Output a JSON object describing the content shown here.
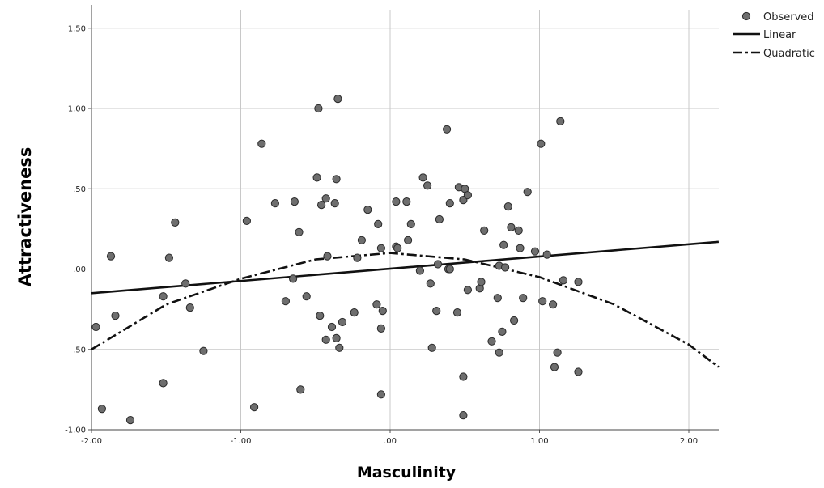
{
  "chart_data": {
    "type": "scatter",
    "xlabel": "Masculinity",
    "ylabel": "Attractiveness",
    "xlim": [
      -2.0,
      2.2
    ],
    "ylim": [
      -1.0,
      1.6
    ],
    "x_ticks": [
      -2.0,
      -1.0,
      0.0,
      1.0,
      2.0
    ],
    "x_tick_labels": [
      "-2.00",
      "-1.00",
      ".00",
      "1.00",
      "2.00"
    ],
    "y_ticks": [
      -1.0,
      -0.5,
      0.0,
      0.5,
      1.0,
      1.5
    ],
    "y_tick_labels": [
      "-1.00",
      "-.50",
      ".00",
      ".50",
      "1.00",
      "1.50"
    ],
    "grid": true,
    "legend_position": "top-right",
    "legend": [
      "Observed",
      "Linear",
      "Quadratic"
    ],
    "colors": {
      "points": "#6e6e6e",
      "lines": "#111111",
      "grid": "#c8c8c8"
    },
    "series": [
      {
        "name": "Observed",
        "type": "scatter",
        "points": [
          [
            -1.97,
            -0.36
          ],
          [
            -1.93,
            -0.87
          ],
          [
            -1.87,
            0.08
          ],
          [
            -1.84,
            -0.29
          ],
          [
            -1.74,
            -0.94
          ],
          [
            -1.52,
            -0.71
          ],
          [
            -1.52,
            -0.17
          ],
          [
            -1.48,
            0.07
          ],
          [
            -1.44,
            0.29
          ],
          [
            -1.37,
            -0.09
          ],
          [
            -1.34,
            -0.24
          ],
          [
            -1.25,
            -0.51
          ],
          [
            -0.96,
            0.3
          ],
          [
            -0.91,
            -0.86
          ],
          [
            -0.86,
            0.78
          ],
          [
            -0.77,
            0.41
          ],
          [
            -0.7,
            -0.2
          ],
          [
            -0.65,
            -0.06
          ],
          [
            -0.64,
            0.42
          ],
          [
            -0.6,
            -0.75
          ],
          [
            -0.61,
            0.23
          ],
          [
            -0.56,
            -0.17
          ],
          [
            -0.49,
            0.57
          ],
          [
            -0.48,
            1.0
          ],
          [
            -0.47,
            -0.29
          ],
          [
            -0.46,
            0.4
          ],
          [
            -0.43,
            0.44
          ],
          [
            -0.43,
            -0.44
          ],
          [
            -0.42,
            0.08
          ],
          [
            -0.39,
            -0.36
          ],
          [
            -0.37,
            0.41
          ],
          [
            -0.36,
            0.56
          ],
          [
            -0.36,
            -0.43
          ],
          [
            -0.35,
            1.06
          ],
          [
            -0.34,
            -0.49
          ],
          [
            -0.32,
            -0.33
          ],
          [
            -0.24,
            -0.27
          ],
          [
            -0.22,
            0.07
          ],
          [
            -0.19,
            0.18
          ],
          [
            -0.15,
            0.37
          ],
          [
            -0.09,
            -0.22
          ],
          [
            -0.08,
            0.28
          ],
          [
            -0.06,
            0.13
          ],
          [
            -0.06,
            -0.78
          ],
          [
            -0.06,
            -0.37
          ],
          [
            -0.05,
            -0.26
          ],
          [
            0.04,
            0.42
          ],
          [
            0.04,
            0.14
          ],
          [
            0.05,
            0.13
          ],
          [
            0.11,
            0.42
          ],
          [
            0.12,
            0.18
          ],
          [
            0.14,
            0.28
          ],
          [
            0.2,
            -0.01
          ],
          [
            0.22,
            0.57
          ],
          [
            0.25,
            0.52
          ],
          [
            0.27,
            -0.09
          ],
          [
            0.28,
            -0.49
          ],
          [
            0.31,
            -0.26
          ],
          [
            0.32,
            0.03
          ],
          [
            0.33,
            0.31
          ],
          [
            0.38,
            0.87
          ],
          [
            0.39,
            0.0
          ],
          [
            0.4,
            0.41
          ],
          [
            0.4,
            0.0
          ],
          [
            0.45,
            -0.27
          ],
          [
            0.46,
            0.51
          ],
          [
            0.49,
            0.43
          ],
          [
            0.49,
            -0.67
          ],
          [
            0.49,
            -0.91
          ],
          [
            0.5,
            0.5
          ],
          [
            0.52,
            -0.13
          ],
          [
            0.52,
            0.46
          ],
          [
            0.6,
            -0.12
          ],
          [
            0.61,
            -0.08
          ],
          [
            0.63,
            0.24
          ],
          [
            0.68,
            -0.45
          ],
          [
            0.72,
            -0.18
          ],
          [
            0.73,
            0.02
          ],
          [
            0.73,
            -0.52
          ],
          [
            0.75,
            -0.39
          ],
          [
            0.76,
            0.15
          ],
          [
            0.77,
            0.01
          ],
          [
            0.79,
            0.39
          ],
          [
            0.81,
            0.26
          ],
          [
            0.83,
            -0.32
          ],
          [
            0.86,
            0.24
          ],
          [
            0.87,
            0.13
          ],
          [
            0.89,
            -0.18
          ],
          [
            0.92,
            0.48
          ],
          [
            0.97,
            0.11
          ],
          [
            1.01,
            0.78
          ],
          [
            1.02,
            -0.2
          ],
          [
            1.05,
            0.09
          ],
          [
            1.09,
            -0.22
          ],
          [
            1.1,
            -0.61
          ],
          [
            1.12,
            -0.52
          ],
          [
            1.14,
            0.92
          ],
          [
            1.16,
            -0.07
          ],
          [
            1.26,
            -0.08
          ],
          [
            1.26,
            -0.64
          ]
        ]
      },
      {
        "name": "Linear",
        "type": "line",
        "style": "solid",
        "x": [
          -2.0,
          2.2
        ],
        "y": [
          -0.15,
          0.17
        ]
      },
      {
        "name": "Quadratic",
        "type": "line",
        "style": "dash-dot",
        "x": [
          -2.0,
          -1.5,
          -1.0,
          -0.5,
          0.0,
          0.5,
          1.0,
          1.5,
          2.0,
          2.2
        ],
        "y": [
          -0.5,
          -0.22,
          -0.06,
          0.06,
          0.1,
          0.06,
          -0.05,
          -0.22,
          -0.47,
          -0.61
        ]
      }
    ]
  }
}
